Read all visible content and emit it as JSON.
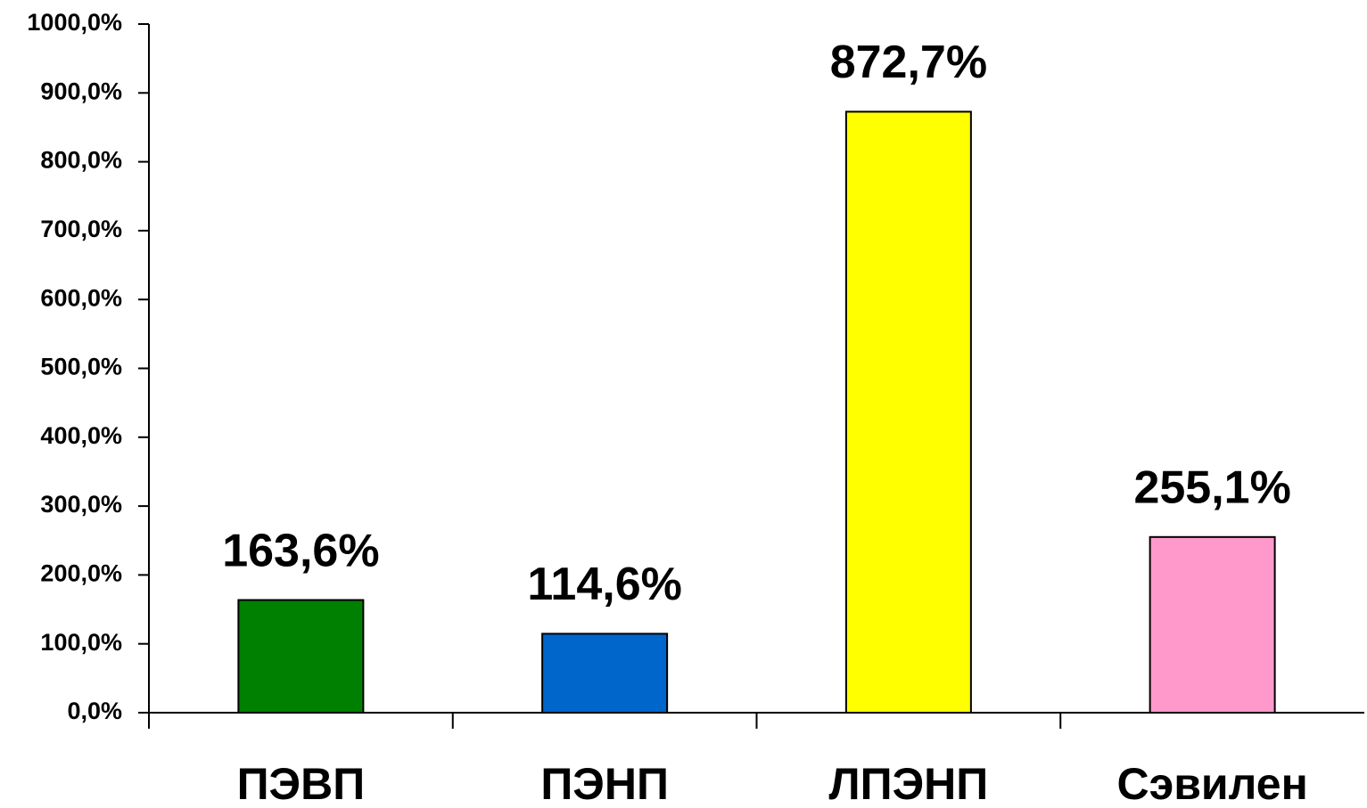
{
  "chart_data": {
    "type": "bar",
    "categories": [
      "ПЭВП",
      "ПЭНП",
      "ЛПЭНП",
      "Сэвилен"
    ],
    "values": [
      163.6,
      114.6,
      872.7,
      255.1
    ],
    "value_labels": [
      "163,6%",
      "114,6%",
      "872,7%",
      "255,1%"
    ],
    "colors": [
      "#008000",
      "#0066cc",
      "#ffff00",
      "#ff99cc"
    ],
    "ylim": [
      0,
      1000
    ],
    "yticks": [
      {
        "value": 0,
        "label": "0,0%"
      },
      {
        "value": 100,
        "label": "100,0%"
      },
      {
        "value": 200,
        "label": "200,0%"
      },
      {
        "value": 300,
        "label": "300,0%"
      },
      {
        "value": 400,
        "label": "400,0%"
      },
      {
        "value": 500,
        "label": "500,0%"
      },
      {
        "value": 600,
        "label": "600,0%"
      },
      {
        "value": 700,
        "label": "700,0%"
      },
      {
        "value": 800,
        "label": "800,0%"
      },
      {
        "value": 900,
        "label": "900,0%"
      },
      {
        "value": 1000,
        "label": "1000,0%"
      }
    ],
    "grid": false
  }
}
